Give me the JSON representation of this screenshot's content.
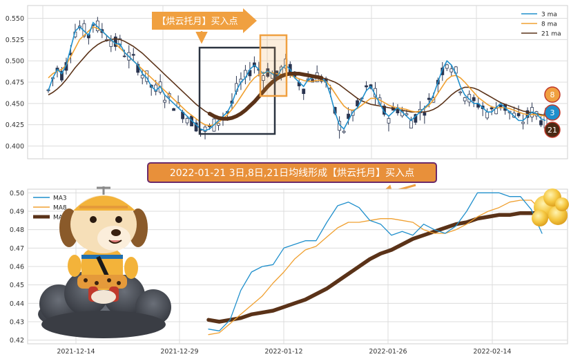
{
  "colors": {
    "ma3": "#1f8fcc",
    "ma8": "#f0a030",
    "ma21": "#5a3218",
    "candle": "#2a3550",
    "grid": "#dcdcdc",
    "banner_fill": "#f0a040",
    "banner_text": "#ffffff",
    "caption_fill": "#e8903a",
    "caption_border": "#6a2a6a",
    "box_dark": "#2a3340",
    "box_orange": "#f0a040"
  },
  "icons": {
    "mascot": "cartoon-dog-on-cloud",
    "gold": "gold-coins-cluster",
    "arrow": "orange-arrow"
  },
  "top_panel": {
    "banner_text": "【烘云托月】买入点",
    "legend": [
      "3 ma",
      "8 ma",
      "21 ma"
    ],
    "badges": [
      "8",
      "3",
      "21"
    ]
  },
  "caption_text": "2022-01-21 3日,8日,21日均线形成【烘云托月】买入点",
  "chart_data": [
    {
      "type": "line",
      "title": "",
      "ylim": [
        0.385,
        0.565
      ],
      "yticks": [
        "0.400",
        "0.425",
        "0.450",
        "0.475",
        "0.500",
        "0.525",
        "0.550"
      ],
      "legend": "top-right",
      "grid": true,
      "series_names": [
        "3 ma",
        "8 ma",
        "21 ma"
      ],
      "ma3": [
        0.465,
        0.48,
        0.49,
        0.485,
        0.495,
        0.515,
        0.535,
        0.54,
        0.535,
        0.53,
        0.545,
        0.54,
        0.535,
        0.53,
        0.525,
        0.52,
        0.52,
        0.51,
        0.505,
        0.5,
        0.495,
        0.485,
        0.48,
        0.47,
        0.465,
        0.47,
        0.46,
        0.455,
        0.45,
        0.445,
        0.44,
        0.435,
        0.43,
        0.425,
        0.42,
        0.418,
        0.42,
        0.425,
        0.43,
        0.435,
        0.44,
        0.45,
        0.465,
        0.475,
        0.48,
        0.49,
        0.495,
        0.49,
        0.485,
        0.488,
        0.485,
        0.48,
        0.49,
        0.495,
        0.49,
        0.48,
        0.475,
        0.47,
        0.478,
        0.48,
        0.482,
        0.48,
        0.475,
        0.46,
        0.44,
        0.425,
        0.42,
        0.43,
        0.44,
        0.445,
        0.455,
        0.465,
        0.47,
        0.46,
        0.45,
        0.44,
        0.435,
        0.44,
        0.445,
        0.44,
        0.435,
        0.43,
        0.435,
        0.44,
        0.445,
        0.45,
        0.46,
        0.475,
        0.49,
        0.5,
        0.495,
        0.485,
        0.47,
        0.46,
        0.455,
        0.45,
        0.45,
        0.445,
        0.44,
        0.44,
        0.445,
        0.45,
        0.445,
        0.44,
        0.435,
        0.43,
        0.43,
        0.435,
        0.44,
        0.438,
        0.432,
        0.43
      ],
      "ma8": [
        0.48,
        0.485,
        0.488,
        0.49,
        0.495,
        0.505,
        0.515,
        0.525,
        0.53,
        0.535,
        0.54,
        0.538,
        0.535,
        0.53,
        0.525,
        0.52,
        0.515,
        0.51,
        0.505,
        0.5,
        0.495,
        0.49,
        0.485,
        0.48,
        0.475,
        0.47,
        0.465,
        0.46,
        0.455,
        0.45,
        0.445,
        0.44,
        0.436,
        0.432,
        0.428,
        0.425,
        0.424,
        0.425,
        0.428,
        0.432,
        0.437,
        0.443,
        0.45,
        0.458,
        0.466,
        0.474,
        0.48,
        0.484,
        0.486,
        0.487,
        0.486,
        0.485,
        0.484,
        0.484,
        0.483,
        0.481,
        0.479,
        0.477,
        0.476,
        0.476,
        0.477,
        0.477,
        0.476,
        0.47,
        0.462,
        0.454,
        0.447,
        0.443,
        0.442,
        0.444,
        0.448,
        0.452,
        0.456,
        0.456,
        0.454,
        0.451,
        0.448,
        0.446,
        0.445,
        0.444,
        0.443,
        0.441,
        0.44,
        0.441,
        0.444,
        0.448,
        0.454,
        0.462,
        0.47,
        0.478,
        0.482,
        0.483,
        0.48,
        0.475,
        0.469,
        0.463,
        0.457,
        0.453,
        0.449,
        0.446,
        0.445,
        0.445,
        0.445,
        0.444,
        0.442,
        0.44,
        0.438,
        0.437,
        0.437,
        0.437,
        0.436,
        0.435
      ],
      "ma21": [
        0.46,
        0.463,
        0.467,
        0.472,
        0.478,
        0.485,
        0.492,
        0.498,
        0.504,
        0.51,
        0.515,
        0.519,
        0.522,
        0.524,
        0.525,
        0.526,
        0.525,
        0.523,
        0.52,
        0.517,
        0.513,
        0.509,
        0.504,
        0.499,
        0.494,
        0.489,
        0.484,
        0.479,
        0.474,
        0.469,
        0.464,
        0.459,
        0.454,
        0.449,
        0.445,
        0.441,
        0.438,
        0.435,
        0.433,
        0.432,
        0.432,
        0.433,
        0.435,
        0.438,
        0.442,
        0.447,
        0.452,
        0.458,
        0.464,
        0.47,
        0.475,
        0.479,
        0.482,
        0.484,
        0.485,
        0.485,
        0.485,
        0.484,
        0.483,
        0.482,
        0.481,
        0.48,
        0.479,
        0.477,
        0.475,
        0.472,
        0.468,
        0.464,
        0.46,
        0.456,
        0.453,
        0.451,
        0.449,
        0.448,
        0.447,
        0.446,
        0.445,
        0.444,
        0.443,
        0.442,
        0.441,
        0.44,
        0.44,
        0.44,
        0.44,
        0.441,
        0.443,
        0.446,
        0.45,
        0.455,
        0.46,
        0.464,
        0.467,
        0.469,
        0.469,
        0.468,
        0.466,
        0.463,
        0.46,
        0.457,
        0.454,
        0.451,
        0.449,
        0.447,
        0.445,
        0.443,
        0.441,
        0.44,
        0.439,
        0.438,
        0.437,
        0.436
      ]
    },
    {
      "type": "line",
      "title": "",
      "ylim": [
        0.418,
        0.502
      ],
      "yticks": [
        "0.42",
        "0.43",
        "0.44",
        "0.45",
        "0.46",
        "0.47",
        "0.48",
        "0.49",
        "0.50"
      ],
      "xticks": [
        "2021-12-14",
        "2021-12-29",
        "2022-01-12",
        "2022-01-26",
        "2022-02-14"
      ],
      "legend": "top-left",
      "grid": true,
      "series": [
        {
          "name": "MA3",
          "values": [
            0.426,
            0.425,
            0.431,
            0.447,
            0.457,
            0.46,
            0.461,
            0.47,
            0.472,
            0.474,
            0.474,
            0.484,
            0.493,
            0.495,
            0.492,
            0.485,
            0.483,
            0.477,
            0.479,
            0.477,
            0.483,
            0.48,
            0.478,
            0.482,
            0.49,
            0.5,
            0.5,
            0.5,
            0.498,
            0.498,
            0.491,
            0.478
          ]
        },
        {
          "name": "MA8",
          "values": [
            0.423,
            0.424,
            0.429,
            0.434,
            0.439,
            0.444,
            0.451,
            0.457,
            0.464,
            0.469,
            0.471,
            0.476,
            0.481,
            0.484,
            0.484,
            0.485,
            0.486,
            0.486,
            0.485,
            0.484,
            0.48,
            0.478,
            0.478,
            0.48,
            0.483,
            0.487,
            0.49,
            0.492,
            0.495,
            0.496,
            0.496,
            0.49
          ]
        },
        {
          "name": "MA21",
          "values": [
            0.431,
            0.43,
            0.431,
            0.432,
            0.434,
            0.435,
            0.436,
            0.438,
            0.44,
            0.442,
            0.445,
            0.448,
            0.452,
            0.456,
            0.46,
            0.464,
            0.467,
            0.469,
            0.472,
            0.475,
            0.477,
            0.479,
            0.481,
            0.483,
            0.484,
            0.486,
            0.487,
            0.488,
            0.488,
            0.489,
            0.489,
            0.489
          ]
        }
      ]
    }
  ]
}
